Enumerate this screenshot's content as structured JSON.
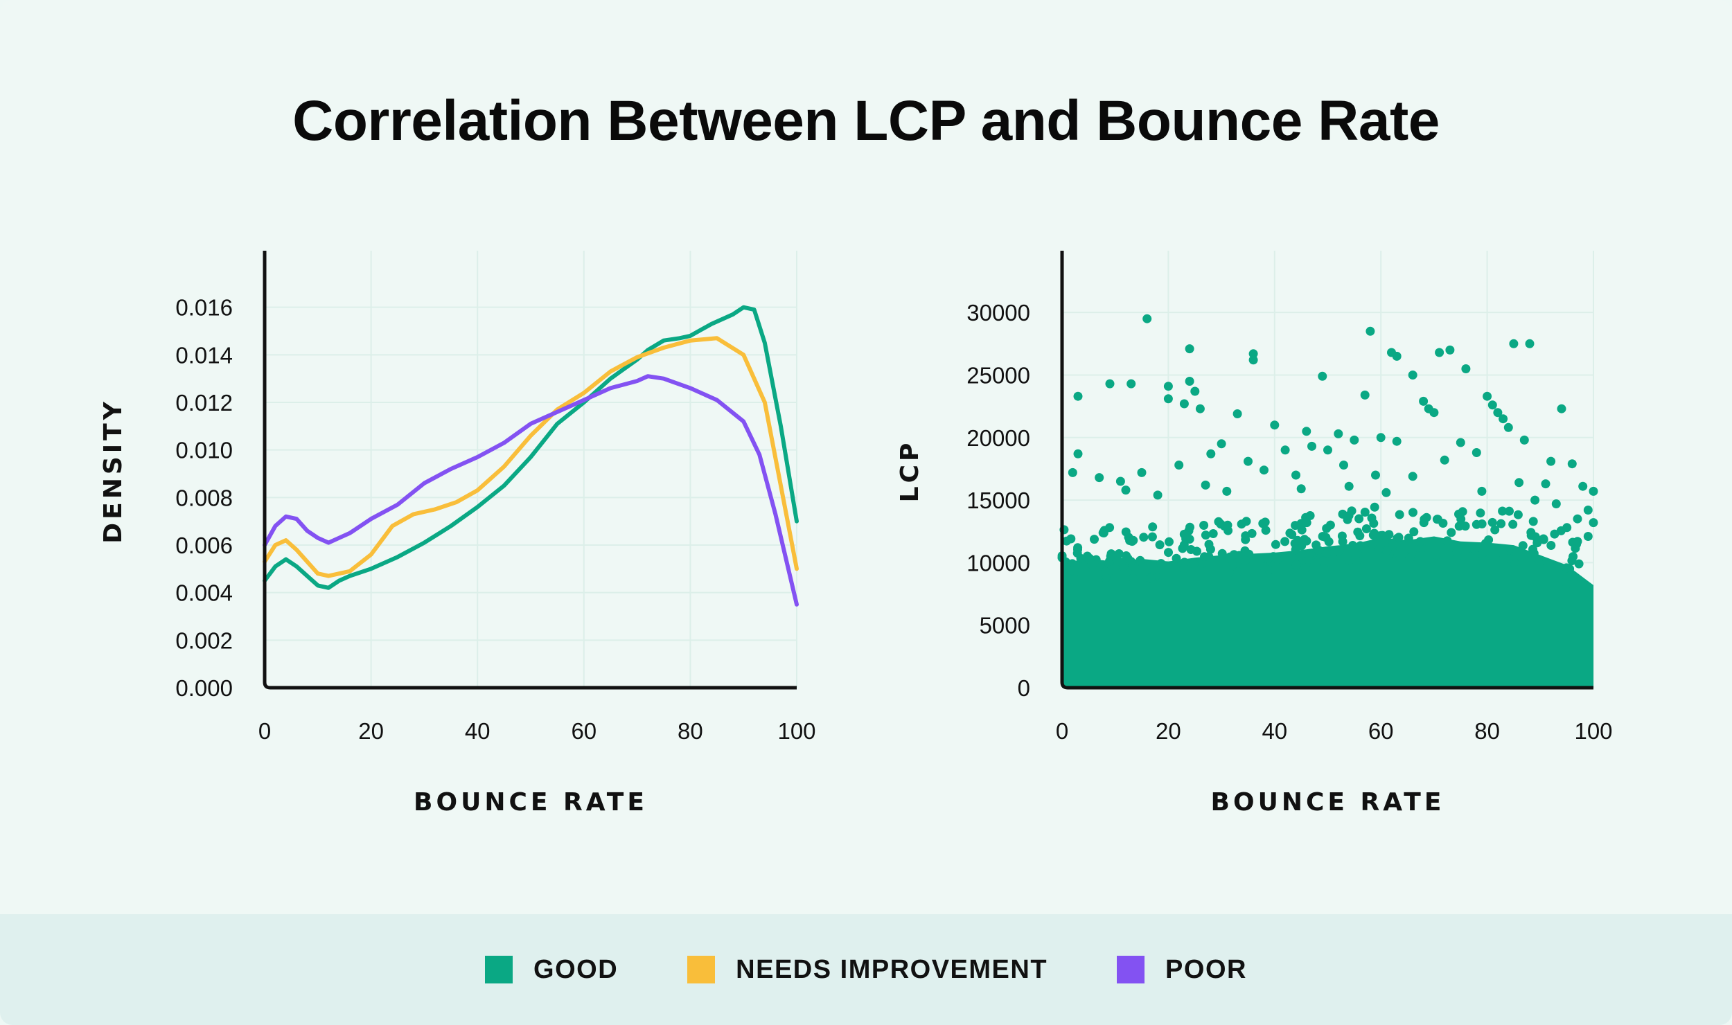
{
  "title": "Correlation Between LCP and Bounce Rate",
  "colors": {
    "good": "#0aa884",
    "needs_improvement": "#f9be3a",
    "poor": "#8352f2",
    "axis": "#111111",
    "grid": "#dcefe9"
  },
  "legend": [
    {
      "label": "GOOD",
      "color": "#0aa884"
    },
    {
      "label": "NEEDS IMPROVEMENT",
      "color": "#f9be3a"
    },
    {
      "label": "POOR",
      "color": "#8352f2"
    }
  ],
  "chart_data": [
    {
      "type": "line",
      "xlabel": "BOUNCE RATE",
      "ylabel": "DENSITY",
      "xlim": [
        0,
        100
      ],
      "ylim": [
        0,
        0.018
      ],
      "xticks": [
        "0",
        "20",
        "40",
        "60",
        "80",
        "100"
      ],
      "yticks": [
        "0.000",
        "0.002",
        "0.004",
        "0.006",
        "0.008",
        "0.010",
        "0.012",
        "0.014",
        "0.016"
      ],
      "series": [
        {
          "name": "GOOD",
          "x": [
            0,
            2,
            4,
            6,
            8,
            10,
            12,
            14,
            16,
            20,
            25,
            30,
            35,
            40,
            45,
            50,
            55,
            60,
            65,
            70,
            72,
            75,
            78,
            80,
            84,
            88,
            90,
            92,
            94,
            97,
            100
          ],
          "y": [
            0.0045,
            0.0051,
            0.0054,
            0.0051,
            0.0047,
            0.0043,
            0.0042,
            0.0045,
            0.0047,
            0.005,
            0.0055,
            0.0061,
            0.0068,
            0.0076,
            0.0085,
            0.0097,
            0.0111,
            0.012,
            0.013,
            0.0138,
            0.0142,
            0.0146,
            0.0147,
            0.0148,
            0.0153,
            0.0157,
            0.016,
            0.0159,
            0.0145,
            0.011,
            0.007
          ]
        },
        {
          "name": "NEEDS IMPROVEMENT",
          "x": [
            0,
            2,
            4,
            6,
            8,
            10,
            12,
            14,
            16,
            20,
            24,
            28,
            32,
            36,
            40,
            45,
            50,
            55,
            60,
            65,
            70,
            75,
            80,
            85,
            90,
            94,
            97,
            100
          ],
          "y": [
            0.0053,
            0.006,
            0.0062,
            0.0058,
            0.0053,
            0.0048,
            0.0047,
            0.0048,
            0.0049,
            0.0056,
            0.0068,
            0.0073,
            0.0075,
            0.0078,
            0.0083,
            0.0093,
            0.0106,
            0.0117,
            0.0124,
            0.0133,
            0.0139,
            0.0143,
            0.0146,
            0.0147,
            0.014,
            0.012,
            0.0085,
            0.005
          ]
        },
        {
          "name": "POOR",
          "x": [
            0,
            2,
            4,
            6,
            8,
            10,
            12,
            14,
            16,
            20,
            25,
            30,
            35,
            40,
            45,
            50,
            55,
            60,
            65,
            70,
            72,
            75,
            80,
            85,
            90,
            93,
            96,
            100
          ],
          "y": [
            0.006,
            0.0068,
            0.0072,
            0.0071,
            0.0066,
            0.0063,
            0.0061,
            0.0063,
            0.0065,
            0.0071,
            0.0077,
            0.0086,
            0.0092,
            0.0097,
            0.0103,
            0.0111,
            0.0116,
            0.0121,
            0.0126,
            0.0129,
            0.0131,
            0.013,
            0.0126,
            0.0121,
            0.0112,
            0.0098,
            0.0073,
            0.0035
          ]
        }
      ]
    },
    {
      "type": "scatter",
      "xlabel": "BOUNCE RATE",
      "ylabel": "LCP",
      "xlim": [
        0,
        100
      ],
      "ylim": [
        0,
        33000
      ],
      "xticks": [
        "0",
        "20",
        "40",
        "60",
        "80",
        "100"
      ],
      "yticks": [
        "0",
        "5000",
        "10000",
        "15000",
        "20000",
        "25000",
        "30000"
      ],
      "series_name": "GOOD",
      "dense_region": {
        "x": [
          0,
          5,
          10,
          15,
          20,
          25,
          30,
          35,
          40,
          45,
          50,
          55,
          60,
          65,
          70,
          75,
          80,
          85,
          90,
          95,
          100
        ],
        "y": [
          10000,
          10300,
          10100,
          10300,
          10100,
          10400,
          10600,
          10700,
          10800,
          11000,
          11300,
          11500,
          12000,
          11800,
          12100,
          11700,
          11600,
          11400,
          10600,
          9800,
          8200
        ]
      },
      "outliers": [
        [
          16,
          29500
        ],
        [
          58,
          28500
        ],
        [
          62,
          26800
        ],
        [
          63,
          26500
        ],
        [
          71,
          26800
        ],
        [
          73,
          27000
        ],
        [
          85,
          27500
        ],
        [
          88,
          27500
        ],
        [
          24,
          27100
        ],
        [
          36,
          26700
        ],
        [
          36,
          26200
        ],
        [
          49,
          24900
        ],
        [
          76,
          25500
        ],
        [
          66,
          25000
        ],
        [
          3,
          23300
        ],
        [
          9,
          24300
        ],
        [
          13,
          24300
        ],
        [
          20,
          24100
        ],
        [
          20,
          23100
        ],
        [
          24,
          24500
        ],
        [
          25,
          23700
        ],
        [
          23,
          22700
        ],
        [
          26,
          22300
        ],
        [
          33,
          21900
        ],
        [
          57,
          23400
        ],
        [
          68,
          22900
        ],
        [
          69,
          22300
        ],
        [
          70,
          22000
        ],
        [
          80,
          23300
        ],
        [
          81,
          22600
        ],
        [
          82,
          22000
        ],
        [
          83,
          21500
        ],
        [
          84,
          20800
        ],
        [
          94,
          22300
        ],
        [
          46,
          20500
        ],
        [
          52,
          20300
        ],
        [
          55,
          19800
        ],
        [
          40,
          21000
        ],
        [
          30,
          19500
        ],
        [
          28,
          18700
        ],
        [
          35,
          18100
        ],
        [
          42,
          19000
        ],
        [
          47,
          19300
        ],
        [
          50,
          19000
        ],
        [
          60,
          20000
        ],
        [
          63,
          19700
        ],
        [
          75,
          19600
        ],
        [
          78,
          18800
        ],
        [
          87,
          19800
        ],
        [
          92,
          18100
        ],
        [
          96,
          17900
        ],
        [
          3,
          18700
        ],
        [
          2,
          17200
        ],
        [
          7,
          16800
        ],
        [
          11,
          16500
        ],
        [
          15,
          17200
        ],
        [
          22,
          17800
        ],
        [
          38,
          17400
        ],
        [
          44,
          17000
        ],
        [
          53,
          17800
        ],
        [
          59,
          17000
        ],
        [
          66,
          16900
        ],
        [
          72,
          18200
        ],
        [
          86,
          16400
        ],
        [
          91,
          16300
        ],
        [
          98,
          16100
        ],
        [
          100,
          15700
        ],
        [
          99,
          14200
        ],
        [
          100,
          13200
        ],
        [
          97,
          13500
        ],
        [
          95,
          12800
        ],
        [
          12,
          15800
        ],
        [
          18,
          15400
        ],
        [
          27,
          16200
        ],
        [
          31,
          15700
        ],
        [
          45,
          15900
        ],
        [
          54,
          16100
        ],
        [
          61,
          15600
        ],
        [
          79,
          15700
        ],
        [
          89,
          15000
        ],
        [
          93,
          14700
        ],
        [
          97,
          11700
        ],
        [
          99,
          12100
        ]
      ]
    }
  ]
}
